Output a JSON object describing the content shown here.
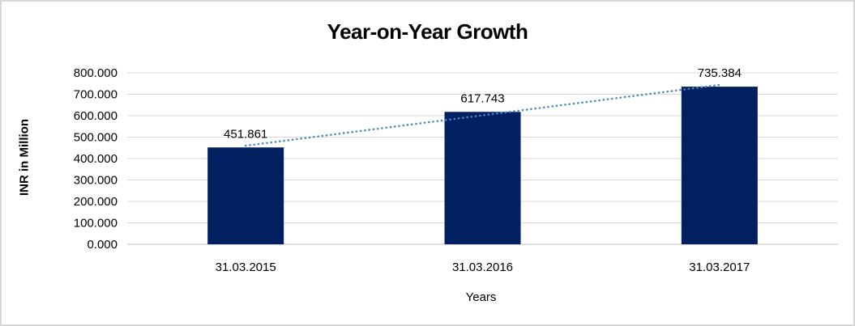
{
  "chart_data": {
    "type": "bar",
    "title": "Year-on-Year Growth",
    "categories": [
      "31.03.2015",
      "31.03.2016",
      "31.03.2017"
    ],
    "values": [
      451.861,
      617.743,
      735.384
    ],
    "data_labels": [
      "451.861",
      "617.743",
      "735.384"
    ],
    "xlabel": "Years",
    "ylabel": "INR in Million",
    "ylim": [
      0,
      800
    ],
    "ytick_step": 100,
    "ytick_labels": [
      "0.000",
      "100.000",
      "200.000",
      "300.000",
      "400.000",
      "500.000",
      "600.000",
      "700.000",
      "800.000"
    ],
    "grid": true,
    "legend_position": "none",
    "trendline": {
      "type": "linear",
      "style": "dotted"
    },
    "colors": {
      "bar": "#002060",
      "trendline": "#4a86c8",
      "gridline": "#d9d9d9",
      "axis_line": "#bfbfbf",
      "text": "#000000",
      "frame_border": "#d6d6d6"
    }
  }
}
